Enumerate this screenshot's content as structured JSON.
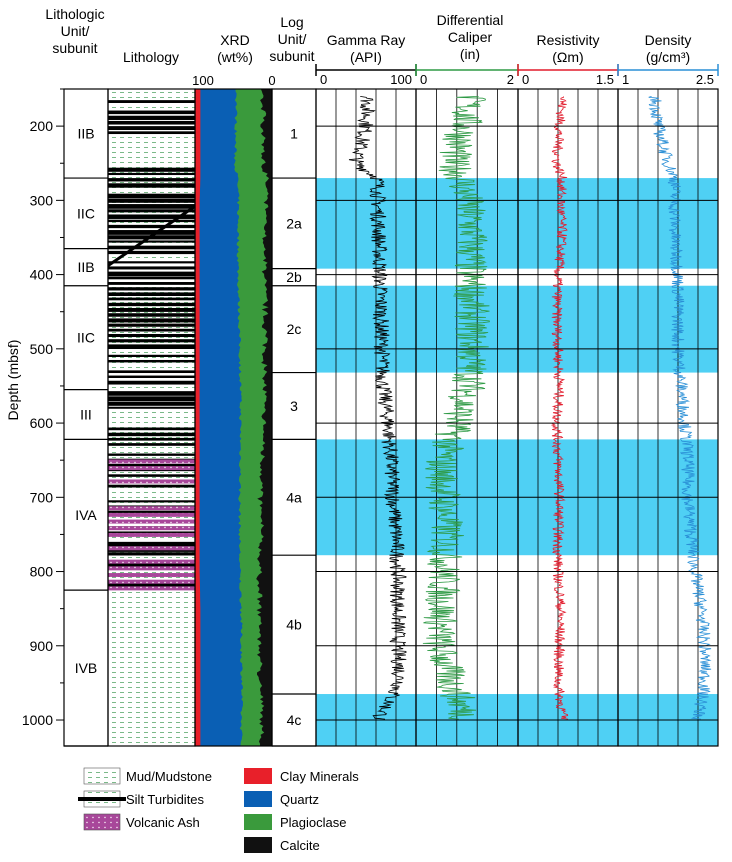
{
  "headers": {
    "lith_unit": [
      "Lithologic",
      "Unit/",
      "subunit"
    ],
    "lithology": "Lithology",
    "xrd": [
      "XRD",
      "(wt%)"
    ],
    "log_unit": [
      "Log",
      "Unit/",
      "subunit"
    ],
    "gamma": [
      "Gamma Ray",
      "(API)"
    ],
    "caliper": [
      "Differential",
      "Caliper",
      "(in)"
    ],
    "resistivity": [
      "Resistivity",
      "(Ωm)"
    ],
    "density": [
      "Density",
      "(g/cm³)"
    ]
  },
  "scales": {
    "xrd": {
      "left": "100",
      "right": "0"
    },
    "gamma": {
      "left": "0",
      "right": "100"
    },
    "caliper": {
      "left": "0",
      "right": "2"
    },
    "resistivity": {
      "left": "0",
      "right": "1.5"
    },
    "density": {
      "left": "1",
      "right": "2.5"
    }
  },
  "depth_axis": {
    "label": "Depth (mbsf)",
    "min": 150,
    "max": 1035,
    "ticks": [
      200,
      300,
      400,
      500,
      600,
      700,
      800,
      900,
      1000
    ]
  },
  "colors": {
    "clay": "#e8202a",
    "quartz": "#0a5fb4",
    "plag": "#3a9a3c",
    "calcite": "#111111",
    "band": "#4fd0f4",
    "gamma": "#000000",
    "caliper": "#2e9a45",
    "resistivity": "#e21b2c",
    "density": "#2a8fd6",
    "ash": "#a8479a",
    "mud": "#5aa86c"
  },
  "lith_units": [
    {
      "label": "IIB",
      "top": 150,
      "bottom": 270
    },
    {
      "label": "IIC",
      "top": 270,
      "bottom": 365
    },
    {
      "label": "IIB",
      "top": 365,
      "bottom": 415
    },
    {
      "label": "IIC",
      "top": 415,
      "bottom": 555
    },
    {
      "label": "III",
      "top": 555,
      "bottom": 622
    },
    {
      "label": "IVA",
      "top": 622,
      "bottom": 825
    },
    {
      "label": "IVB",
      "top": 825,
      "bottom": 1035
    }
  ],
  "log_units": [
    {
      "label": "1",
      "top": 150,
      "bottom": 270
    },
    {
      "label": "2a",
      "top": 270,
      "bottom": 392
    },
    {
      "label": "2b",
      "top": 392,
      "bottom": 415
    },
    {
      "label": "2c",
      "top": 415,
      "bottom": 532
    },
    {
      "label": "3",
      "top": 532,
      "bottom": 622
    },
    {
      "label": "4a",
      "top": 622,
      "bottom": 778
    },
    {
      "label": "4b",
      "top": 778,
      "bottom": 965
    },
    {
      "label": "4c",
      "top": 965,
      "bottom": 1035
    }
  ],
  "blue_bands": [
    {
      "top": 270,
      "bottom": 392
    },
    {
      "top": 415,
      "bottom": 532
    },
    {
      "top": 622,
      "bottom": 778
    },
    {
      "top": 965,
      "bottom": 1035
    }
  ],
  "xrd_profile": {
    "depths": [
      150,
      200,
      250,
      270,
      300,
      350,
      400,
      450,
      500,
      550,
      600,
      650,
      700,
      750,
      800,
      850,
      900,
      950,
      1000,
      1035
    ],
    "clay": [
      7,
      7,
      7,
      7,
      6,
      6,
      6,
      6,
      6,
      6,
      6,
      6,
      6,
      6,
      6,
      7,
      7,
      7,
      7,
      7
    ],
    "quartz": [
      47,
      46,
      45,
      48,
      50,
      50,
      50,
      51,
      52,
      53,
      53,
      53,
      52,
      52,
      52,
      53,
      53,
      54,
      53,
      53
    ],
    "plag": [
      33,
      36,
      37,
      37,
      36,
      34,
      35,
      34,
      33,
      31,
      30,
      29,
      27,
      28,
      25,
      24,
      24,
      24,
      26,
      26
    ]
  },
  "log_series": {
    "gamma": {
      "depths": [
        160,
        200,
        250,
        270,
        300,
        350,
        400,
        450,
        500,
        550,
        600,
        650,
        700,
        750,
        800,
        850,
        900,
        950,
        1000
      ],
      "values": [
        52,
        50,
        40,
        62,
        62,
        63,
        64,
        65,
        66,
        67,
        72,
        75,
        77,
        80,
        82,
        82,
        82,
        84,
        62
      ]
    },
    "caliper": {
      "depths": [
        160,
        200,
        250,
        270,
        300,
        350,
        400,
        450,
        500,
        550,
        600,
        650,
        700,
        750,
        800,
        850,
        900,
        950,
        1000
      ],
      "values": [
        1.05,
        0.95,
        0.7,
        0.9,
        1.0,
        1.1,
        1.05,
        1.1,
        1.1,
        1.05,
        0.8,
        0.5,
        0.55,
        0.6,
        0.55,
        0.5,
        0.45,
        0.7,
        1.0
      ]
    },
    "resistivity": {
      "depths": [
        160,
        200,
        250,
        270,
        300,
        350,
        400,
        450,
        500,
        550,
        600,
        650,
        700,
        750,
        800,
        850,
        900,
        950,
        1000
      ],
      "values": [
        0.68,
        0.62,
        0.58,
        0.66,
        0.64,
        0.66,
        0.6,
        0.58,
        0.6,
        0.62,
        0.58,
        0.6,
        0.62,
        0.6,
        0.6,
        0.64,
        0.62,
        0.6,
        0.68
      ]
    },
    "density": {
      "depths": [
        160,
        200,
        250,
        270,
        300,
        350,
        400,
        450,
        500,
        550,
        600,
        650,
        700,
        750,
        800,
        850,
        900,
        950,
        1000
      ],
      "values": [
        1.55,
        1.6,
        1.75,
        1.85,
        1.85,
        1.85,
        1.9,
        1.9,
        1.9,
        1.95,
        2.0,
        2.05,
        2.05,
        2.1,
        2.15,
        2.25,
        2.3,
        2.3,
        2.2
      ]
    }
  },
  "legend": {
    "lithology": [
      {
        "label": "Mud/Mudstone",
        "key": "mud"
      },
      {
        "label": "Silt Turbidites",
        "key": "silt"
      },
      {
        "label": "Volcanic Ash",
        "key": "ash"
      }
    ],
    "minerals": [
      {
        "label": "Clay Minerals",
        "color": "#e8202a"
      },
      {
        "label": "Quartz",
        "color": "#0a5fb4"
      },
      {
        "label": "Plagioclase",
        "color": "#3a9a3c"
      },
      {
        "label": "Calcite",
        "color": "#111111"
      }
    ]
  }
}
